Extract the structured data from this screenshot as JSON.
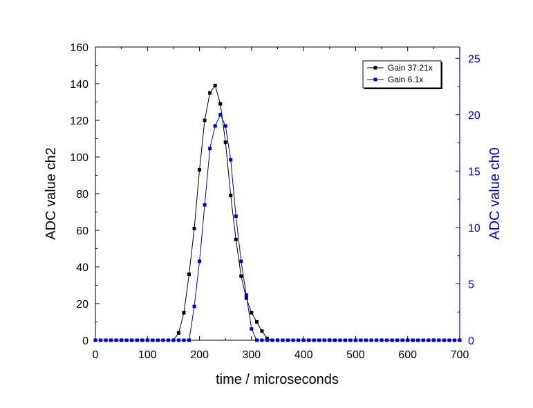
{
  "chart_data": {
    "type": "line",
    "xlabel": "time / microseconds",
    "ylabel": "ADC value ch2",
    "y2label": "ADC value ch0",
    "xlim": [
      0,
      700
    ],
    "ylim": [
      0,
      160
    ],
    "y2lim": [
      0,
      26
    ],
    "x_ticks": [
      "0",
      "100",
      "200",
      "300",
      "400",
      "500",
      "600",
      "700"
    ],
    "y_ticks": [
      "0",
      "20",
      "40",
      "60",
      "80",
      "100",
      "120",
      "140",
      "160"
    ],
    "y2_ticks": [
      "0",
      "5",
      "10",
      "15",
      "20",
      "25"
    ],
    "grid": false,
    "legend_position": "top-right",
    "series": [
      {
        "name": "Gain 37.21x",
        "axis": "left",
        "color": "#000000",
        "x": [
          0,
          10,
          20,
          30,
          40,
          50,
          60,
          70,
          80,
          90,
          100,
          110,
          120,
          130,
          140,
          150,
          160,
          170,
          180,
          190,
          200,
          210,
          220,
          230,
          240,
          250,
          260,
          270,
          280,
          290,
          300,
          310,
          320,
          330,
          340,
          350,
          360,
          370,
          380,
          390,
          400,
          410,
          420,
          430,
          440,
          450,
          460,
          470,
          480,
          490,
          500,
          510,
          520,
          530,
          540,
          550,
          560,
          570,
          580,
          590,
          600,
          610,
          620,
          630,
          640,
          650,
          660,
          670,
          680,
          690,
          700
        ],
        "y": [
          0,
          0,
          0,
          0,
          0,
          0,
          0,
          0,
          0,
          0,
          0,
          0,
          0,
          0,
          0,
          0,
          4,
          15,
          36,
          61,
          93,
          120,
          135,
          139,
          129,
          108,
          79,
          55,
          35,
          23,
          15,
          10,
          5,
          1,
          0,
          0,
          0,
          0,
          0,
          0,
          0,
          0,
          0,
          0,
          0,
          0,
          0,
          0,
          0,
          0,
          0,
          0,
          0,
          0,
          0,
          0,
          0,
          0,
          0,
          0,
          0,
          0,
          0,
          0,
          0,
          0,
          0,
          0,
          0,
          0,
          0
        ]
      },
      {
        "name": "Gain 6.1x",
        "axis": "right",
        "color": "#0000cc",
        "x": [
          0,
          10,
          20,
          30,
          40,
          50,
          60,
          70,
          80,
          90,
          100,
          110,
          120,
          130,
          140,
          150,
          160,
          170,
          180,
          190,
          200,
          210,
          220,
          230,
          240,
          250,
          260,
          270,
          280,
          290,
          300,
          310,
          320,
          330,
          340,
          350,
          360,
          370,
          380,
          390,
          400,
          410,
          420,
          430,
          440,
          450,
          460,
          470,
          480,
          490,
          500,
          510,
          520,
          530,
          540,
          550,
          560,
          570,
          580,
          590,
          600,
          610,
          620,
          630,
          640,
          650,
          660,
          670,
          680,
          690,
          700
        ],
        "y": [
          0,
          0,
          0,
          0,
          0,
          0,
          0,
          0,
          0,
          0,
          0,
          0,
          0,
          0,
          0,
          0,
          0,
          0,
          0,
          3,
          7,
          12,
          17,
          19,
          20,
          19,
          16,
          11,
          7,
          4,
          1,
          0,
          0,
          0,
          0,
          0,
          0,
          0,
          0,
          0,
          0,
          0,
          0,
          0,
          0,
          0,
          0,
          0,
          0,
          0,
          0,
          0,
          0,
          0,
          0,
          0,
          0,
          0,
          0,
          0,
          0,
          0,
          0,
          0,
          0,
          0,
          0,
          0,
          0,
          0,
          0
        ]
      }
    ]
  },
  "colors": {
    "left_axis": "#000000",
    "right_axis": "#0000cc"
  }
}
